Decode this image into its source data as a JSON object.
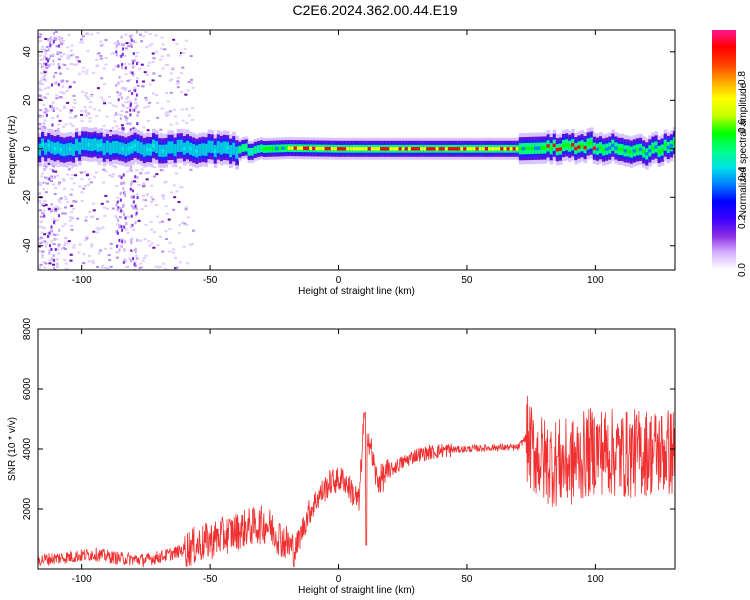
{
  "title": "C2E6.2024.362.00.44.E19",
  "chart_data": [
    {
      "type": "heatmap",
      "xlabel": "Height of straight line (km)",
      "ylabel": "Frequency (Hz)",
      "xlim": [
        -117,
        131
      ],
      "ylim": [
        -50,
        49
      ],
      "xticks": [
        -100,
        -50,
        0,
        50,
        100
      ],
      "yticks": [
        -40,
        -20,
        0,
        20,
        40
      ],
      "colorbar": {
        "label": "Normalized spectral amplitude",
        "range": [
          0,
          1
        ],
        "ticks": [
          "0.0",
          "0.2",
          "0.4",
          "0.6",
          "0.8"
        ],
        "colors": [
          "#ffffff",
          "#d6b3ff",
          "#8a2be2",
          "#3a00ff",
          "#0000ff",
          "#0080ff",
          "#00e5e5",
          "#00ff80",
          "#00ff00",
          "#c8ff00",
          "#ffff00",
          "#ffa500",
          "#ff4000",
          "#ff0000",
          "#ff1493"
        ]
      },
      "band_center_hz": [
        [
          -115,
          0.5
        ],
        [
          -100,
          0.8
        ],
        [
          -80,
          0.5
        ],
        [
          -60,
          0.0
        ],
        [
          -40,
          -0.5
        ],
        [
          -20,
          0.3
        ],
        [
          0,
          0.0
        ],
        [
          20,
          0.0
        ],
        [
          50,
          0.0
        ],
        [
          70,
          0.0
        ],
        [
          85,
          0.5
        ],
        [
          95,
          1.5
        ],
        [
          110,
          0.0
        ],
        [
          120,
          -1.0
        ],
        [
          131,
          1.5
        ]
      ]
    },
    {
      "type": "line",
      "xlabel": "Height of straight line (km)",
      "ylabel": "SNR (10 * v/v)",
      "xlim": [
        -117,
        131
      ],
      "ylim": [
        0,
        8000
      ],
      "xticks": [
        -100,
        -50,
        0,
        50,
        100
      ],
      "yticks": [
        2000,
        4000,
        6000,
        8000
      ],
      "color": "#f03030",
      "series": [
        {
          "x": [
            -117,
            -105,
            -95,
            -85,
            -75,
            -65,
            -55,
            -45,
            -35,
            -28,
            -22,
            -17,
            -12,
            -8,
            -3,
            2,
            8,
            10,
            15,
            22,
            30,
            40,
            50,
            60,
            70,
            73,
            75,
            80,
            90,
            100,
            110,
            120,
            131
          ],
          "y": [
            300,
            400,
            500,
            350,
            300,
            500,
            800,
            1100,
            1400,
            1500,
            1000,
            600,
            1800,
            2400,
            2900,
            3000,
            2200,
            5200,
            2900,
            3400,
            3800,
            3950,
            4000,
            4050,
            4050,
            4400,
            4000,
            3600,
            3500,
            4000,
            3800,
            3900,
            3900
          ]
        }
      ]
    }
  ]
}
